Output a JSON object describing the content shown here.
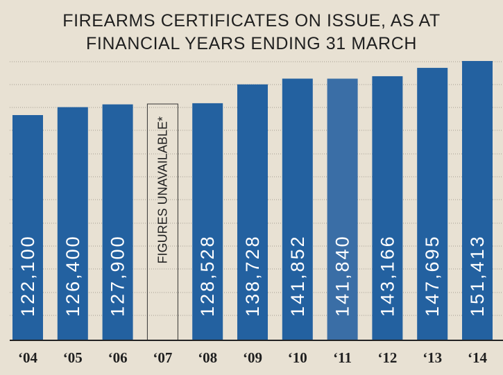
{
  "chart_data": {
    "type": "bar",
    "title_lines": [
      "FIREARMS CERTIFICATES ON ISSUE, AS AT",
      "FINANCIAL YEARS ENDING 31 MARCH"
    ],
    "categories": [
      "‘04",
      "‘05",
      "‘06",
      "‘07",
      "‘08",
      "‘09",
      "‘10",
      "‘11",
      "‘12",
      "‘13",
      "‘14"
    ],
    "values": [
      122100,
      126400,
      127900,
      null,
      128528,
      138728,
      141852,
      141840,
      143166,
      147695,
      151413
    ],
    "value_labels": [
      "122,100",
      "126,400",
      "127,900",
      "FIGURES UNAVAILABLE*",
      "128,528",
      "138,728",
      "141,852",
      "141,840",
      "143,166",
      "147,695",
      "151,413"
    ],
    "highlight_index": 7,
    "ylim": [
      0,
      151413
    ],
    "grid": true,
    "colors": {
      "bar": "#2361a0",
      "bar_highlight": "#3a6ea6",
      "background": "#e8e1d3",
      "text": "#1f1f1f"
    }
  }
}
